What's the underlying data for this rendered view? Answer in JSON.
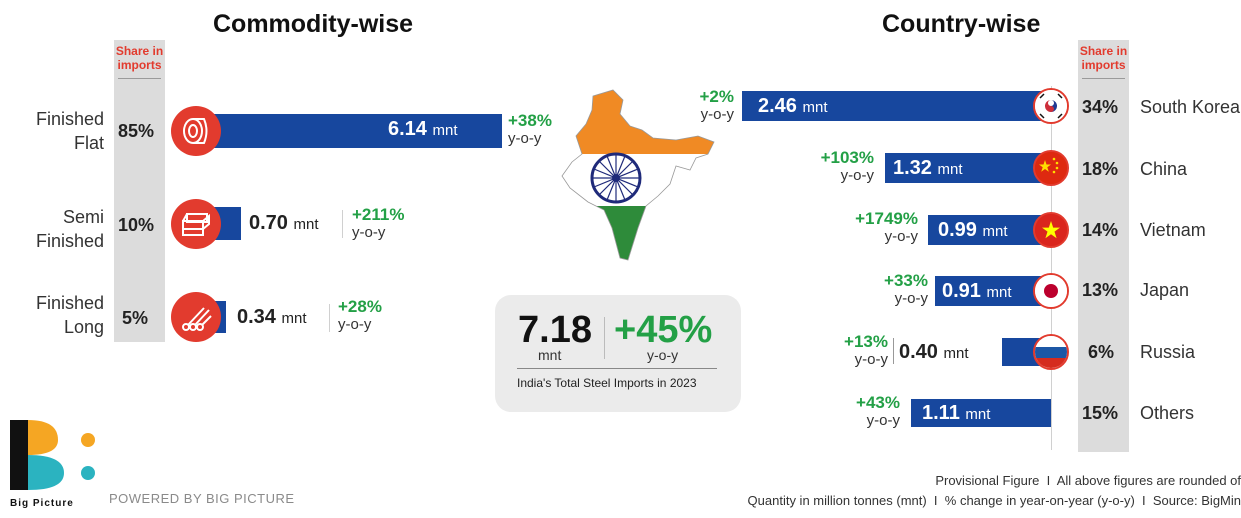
{
  "commodity": {
    "title": "Commodity-wise",
    "share_head": "Share in imports",
    "items": [
      {
        "label_1": "Finished",
        "label_2": "Flat",
        "share": "85%",
        "value": "6.14",
        "unit": "mnt",
        "yoy_pct": "+38%",
        "yoy_text": "y-o-y",
        "icon": "steel-coil-icon"
      },
      {
        "label_1": "Semi",
        "label_2": "Finished",
        "share": "10%",
        "value": "0.70",
        "unit": "mnt",
        "yoy_pct": "+211%",
        "yoy_text": "y-o-y",
        "icon": "steel-billets-icon"
      },
      {
        "label_1": "Finished",
        "label_2": "Long",
        "share": "5%",
        "value": "0.34",
        "unit": "mnt",
        "yoy_pct": "+28%",
        "yoy_text": "y-o-y",
        "icon": "steel-rods-icon"
      }
    ]
  },
  "country": {
    "title": "Country-wise",
    "share_head": "Share in imports",
    "items": [
      {
        "name": "South Korea",
        "share": "34%",
        "value": "2.46",
        "unit": "mnt",
        "yoy_pct": "+2%",
        "yoy_text": "y-o-y",
        "flag": "south-korea-flag-icon"
      },
      {
        "name": "China",
        "share": "18%",
        "value": "1.32",
        "unit": "mnt",
        "yoy_pct": "+103%",
        "yoy_text": "y-o-y",
        "flag": "china-flag-icon"
      },
      {
        "name": "Vietnam",
        "share": "14%",
        "value": "0.99",
        "unit": "mnt",
        "yoy_pct": "+1749%",
        "yoy_text": "y-o-y",
        "flag": "vietnam-flag-icon"
      },
      {
        "name": "Japan",
        "share": "13%",
        "value": "0.91",
        "unit": "mnt",
        "yoy_pct": "+33%",
        "yoy_text": "y-o-y",
        "flag": "japan-flag-icon"
      },
      {
        "name": "Russia",
        "share": "6%",
        "value": "0.40",
        "unit": "mnt",
        "yoy_pct": "+13%",
        "yoy_text": "y-o-y",
        "flag": "russia-flag-icon"
      },
      {
        "name": "Others",
        "share": "15%",
        "value": "1.11",
        "unit": "mnt",
        "yoy_pct": "+43%",
        "yoy_text": "y-o-y",
        "flag": ""
      }
    ]
  },
  "total": {
    "value": "7.18",
    "unit": "mnt",
    "yoy_pct": "+45%",
    "yoy_text": "y-o-y",
    "caption": "India's Total Steel Imports in 2023"
  },
  "brand": {
    "logo_text": "Big Picture",
    "powered": "POWERED BY BIG PICTURE"
  },
  "footer": {
    "line1": "Provisional Figure  I  All above figures are rounded of",
    "line2": "Quantity in million tonnes (mnt)  I  % change in year-on-year (y-o-y)  I  Source: BigMin"
  },
  "colors": {
    "bar": "#17479e",
    "accent_red": "#e23b2e",
    "positive_green": "#23a046",
    "share_panel": "#dcdcdc"
  }
}
